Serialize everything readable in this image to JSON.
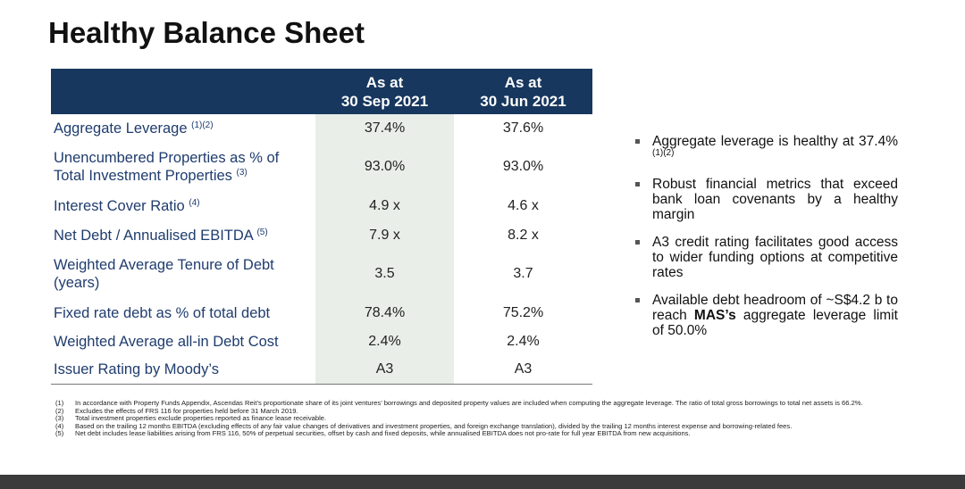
{
  "header": {
    "title": "Healthy Balance Sheet"
  },
  "table": {
    "columns": [
      {
        "line1": "As at",
        "line2": "30 Sep 2021"
      },
      {
        "line1": "As at",
        "line2": "30 Jun 2021"
      }
    ],
    "rows": [
      {
        "label": "Aggregate Leverage",
        "note": "(1)(2)",
        "values": [
          "37.4%",
          "37.6%"
        ]
      },
      {
        "label": "Unencumbered Properties as % of Total Investment Properties",
        "note": "(3)",
        "values": [
          "93.0%",
          "93.0%"
        ]
      },
      {
        "label": "Interest Cover Ratio",
        "note": "(4)",
        "values": [
          "4.9 x",
          "4.6 x"
        ]
      },
      {
        "label": "Net Debt / Annualised EBITDA",
        "note": "(5)",
        "values": [
          "7.9 x",
          "8.2 x"
        ]
      },
      {
        "label": "Weighted Average Tenure of Debt (years)",
        "values": [
          "3.5",
          "3.7"
        ]
      },
      {
        "label": "Fixed rate debt as % of total debt",
        "values": [
          "78.4%",
          "75.2%"
        ]
      },
      {
        "label": "Weighted Average all-in Debt Cost",
        "values": [
          "2.4%",
          "2.4%"
        ]
      },
      {
        "label": "Issuer Rating by Moody’s",
        "values": [
          "A3",
          "A3"
        ]
      }
    ]
  },
  "bullets": [
    {
      "text": "Aggregate leverage is healthy at 37.4%",
      "note": "(1)(2)"
    },
    {
      "text": "Robust financial metrics that exceed bank loan covenants by a healthy margin"
    },
    {
      "text": "A3 credit rating facilitates good access to wider funding options at competitive rates"
    },
    {
      "before": "Available debt headroom of ~S$4.2 b to reach ",
      "bold": "MAS’s",
      "after": " aggregate leverage limit of 50.0%"
    }
  ],
  "footnotes": [
    {
      "num": "(1)",
      "text": "In accordance with Property Funds Appendix, Ascendas Reit’s proportionate share of its joint ventures’ borrowings and deposited property values are included when computing the aggregate leverage. The ratio of total gross borrowings to total net assets is 66.2%."
    },
    {
      "num": "(2)",
      "text": "Excludes the effects of FRS 116 for properties held before 31 March 2019."
    },
    {
      "num": "(3)",
      "text": "Total investment properties exclude properties reported as finance lease receivable."
    },
    {
      "num": "(4)",
      "text": "Based on the trailing 12 months EBITDA (excluding effects of any fair value changes of derivatives and investment properties, and foreign exchange translation), divided by the trailing 12 months interest expense and borrowing-related fees."
    },
    {
      "num": "(5)",
      "text": "Net debt includes lease liabilities arising from FRS 116, 50% of perpetual securities, offset by cash and fixed deposits, while annualised EBITDA does not pro-rate for full year EBITDA from new acquisitions."
    }
  ]
}
